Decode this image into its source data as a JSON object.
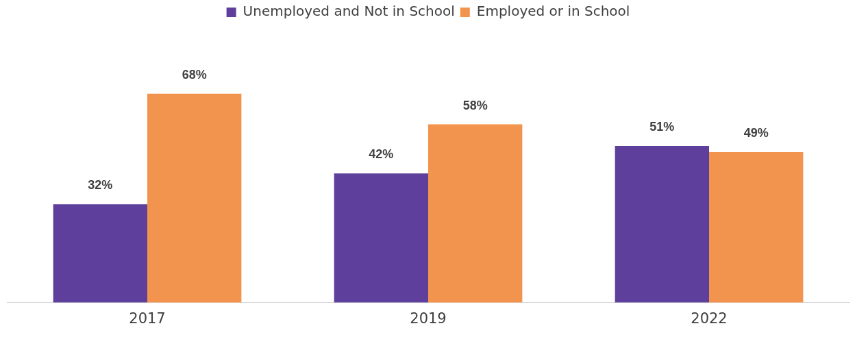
{
  "chart_data": {
    "type": "bar",
    "categories": [
      "2017",
      "2019",
      "2022"
    ],
    "series": [
      {
        "name": "Unemployed and Not in School",
        "color": "#5e3f9b",
        "values": [
          32,
          42,
          51
        ],
        "value_labels": [
          "32%",
          "42%",
          "51%"
        ]
      },
      {
        "name": "Employed or in School",
        "color": "#f2944d",
        "values": [
          68,
          58,
          49
        ],
        "value_labels": [
          "68%",
          "58%",
          "49%"
        ]
      }
    ],
    "legend": "top",
    "grid": false,
    "tick_labels": "x"
  }
}
